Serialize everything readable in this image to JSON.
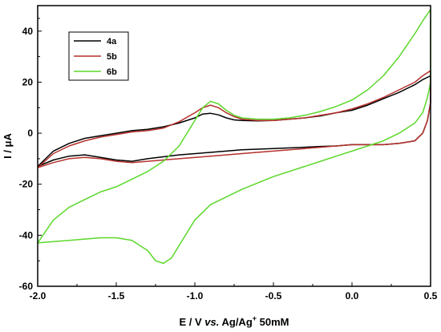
{
  "chart_data": {
    "type": "line",
    "title": "",
    "xlabel": {
      "main": "E / V ",
      "italic": "vs.",
      "after": " Ag/Ag",
      "sup": "+",
      "tail": " 50mM"
    },
    "ylabel": {
      "main": "I / ",
      "unit": "μA"
    },
    "xlim": [
      -2.0,
      0.5
    ],
    "ylim": [
      -60,
      50
    ],
    "x_ticks": [
      -2.0,
      -1.5,
      -1.0,
      -0.5,
      0.0,
      0.5
    ],
    "x_tick_labels": [
      "-2.0",
      "-1.5",
      "-1.0",
      "-0.5",
      "0.0",
      "0.5"
    ],
    "y_ticks": [
      -60,
      -40,
      -20,
      0,
      20,
      40
    ],
    "y_tick_labels": [
      "-60",
      "-40",
      "-20",
      "0",
      "20",
      "40"
    ],
    "grid": false,
    "legend_position": "top-left",
    "series": [
      {
        "name": "4a",
        "color": "#000000",
        "x": [
          -2.0,
          -1.9,
          -1.8,
          -1.7,
          -1.6,
          -1.5,
          -1.4,
          -1.3,
          -1.2,
          -1.1,
          -1.0,
          -0.95,
          -0.9,
          -0.85,
          -0.8,
          -0.75,
          -0.7,
          -0.6,
          -0.5,
          -0.4,
          -0.3,
          -0.2,
          -0.1,
          0.0,
          0.1,
          0.2,
          0.3,
          0.4,
          0.45,
          0.5,
          0.5,
          0.48,
          0.45,
          0.4,
          0.3,
          0.2,
          0.1,
          0.0,
          -0.1,
          -0.2,
          -0.3,
          -0.5,
          -0.7,
          -0.9,
          -1.1,
          -1.3,
          -1.4,
          -1.5,
          -1.6,
          -1.7,
          -1.8,
          -1.9,
          -2.0
        ],
        "y": [
          -13,
          -7,
          -4,
          -2,
          -1,
          0,
          1,
          1.5,
          2.5,
          4,
          6,
          7.5,
          7.8,
          7.2,
          6,
          5.2,
          5,
          4.8,
          5,
          5.5,
          6,
          6.8,
          8,
          9,
          11,
          13.5,
          16,
          19,
          21,
          22.5,
          12,
          5,
          0,
          -3,
          -4,
          -4.5,
          -4.5,
          -4.5,
          -5,
          -5.2,
          -5.5,
          -6,
          -6.5,
          -7.5,
          -8.5,
          -10,
          -11,
          -10.5,
          -9.5,
          -8.5,
          -9,
          -10.5,
          -13
        ]
      },
      {
        "name": "5b",
        "color": "#b5302b",
        "x": [
          -2.0,
          -1.9,
          -1.8,
          -1.7,
          -1.6,
          -1.5,
          -1.4,
          -1.3,
          -1.2,
          -1.1,
          -1.0,
          -0.95,
          -0.9,
          -0.85,
          -0.8,
          -0.75,
          -0.7,
          -0.6,
          -0.5,
          -0.4,
          -0.3,
          -0.2,
          -0.1,
          0.0,
          0.1,
          0.2,
          0.3,
          0.4,
          0.45,
          0.5,
          0.5,
          0.48,
          0.45,
          0.4,
          0.3,
          0.2,
          0.1,
          0.0,
          -0.1,
          -0.2,
          -0.3,
          -0.5,
          -0.7,
          -0.9,
          -1.1,
          -1.3,
          -1.4,
          -1.5,
          -1.6,
          -1.7,
          -1.8,
          -1.9,
          -2.0
        ],
        "y": [
          -13.5,
          -8,
          -5,
          -3,
          -1.5,
          -0.5,
          0.5,
          1,
          2,
          4.5,
          8,
          10,
          11,
          10,
          8,
          6.5,
          5.5,
          5,
          5,
          5.5,
          6,
          7,
          8,
          9.5,
          11.5,
          14,
          17,
          20,
          22.5,
          24.5,
          12,
          5,
          0,
          -3,
          -4,
          -4.5,
          -4.5,
          -4.5,
          -5,
          -5.5,
          -6,
          -7,
          -8,
          -9,
          -10,
          -11,
          -11.5,
          -11,
          -10,
          -9.5,
          -10,
          -11.5,
          -13.5
        ]
      },
      {
        "name": "6b",
        "color": "#5bd82a",
        "x": [
          -2.0,
          -1.9,
          -1.8,
          -1.7,
          -1.6,
          -1.5,
          -1.4,
          -1.3,
          -1.2,
          -1.1,
          -1.0,
          -0.95,
          -0.9,
          -0.85,
          -0.8,
          -0.75,
          -0.7,
          -0.6,
          -0.5,
          -0.4,
          -0.3,
          -0.2,
          -0.1,
          0.0,
          0.1,
          0.2,
          0.3,
          0.4,
          0.45,
          0.5,
          0.5,
          0.48,
          0.45,
          0.4,
          0.3,
          0.2,
          0.1,
          0.0,
          -0.1,
          -0.2,
          -0.3,
          -0.5,
          -0.7,
          -0.9,
          -1.0,
          -1.1,
          -1.15,
          -1.2,
          -1.25,
          -1.3,
          -1.4,
          -1.5,
          -1.6,
          -1.7,
          -1.8,
          -1.9,
          -2.0
        ],
        "y": [
          -43,
          -34,
          -29,
          -26,
          -23,
          -21,
          -18,
          -15,
          -11,
          -5,
          5,
          10,
          12.5,
          11.5,
          9,
          7,
          6,
          5.5,
          5.5,
          6,
          7,
          8.5,
          10.5,
          13,
          17,
          22.5,
          30,
          39,
          44,
          48.5,
          20,
          14,
          8,
          4,
          0,
          -3,
          -5,
          -7,
          -9,
          -11,
          -13,
          -17,
          -22,
          -28,
          -34,
          -44,
          -49,
          -51,
          -50,
          -46,
          -42,
          -41,
          -41,
          -41.5,
          -42,
          -42.5,
          -43
        ]
      }
    ]
  }
}
